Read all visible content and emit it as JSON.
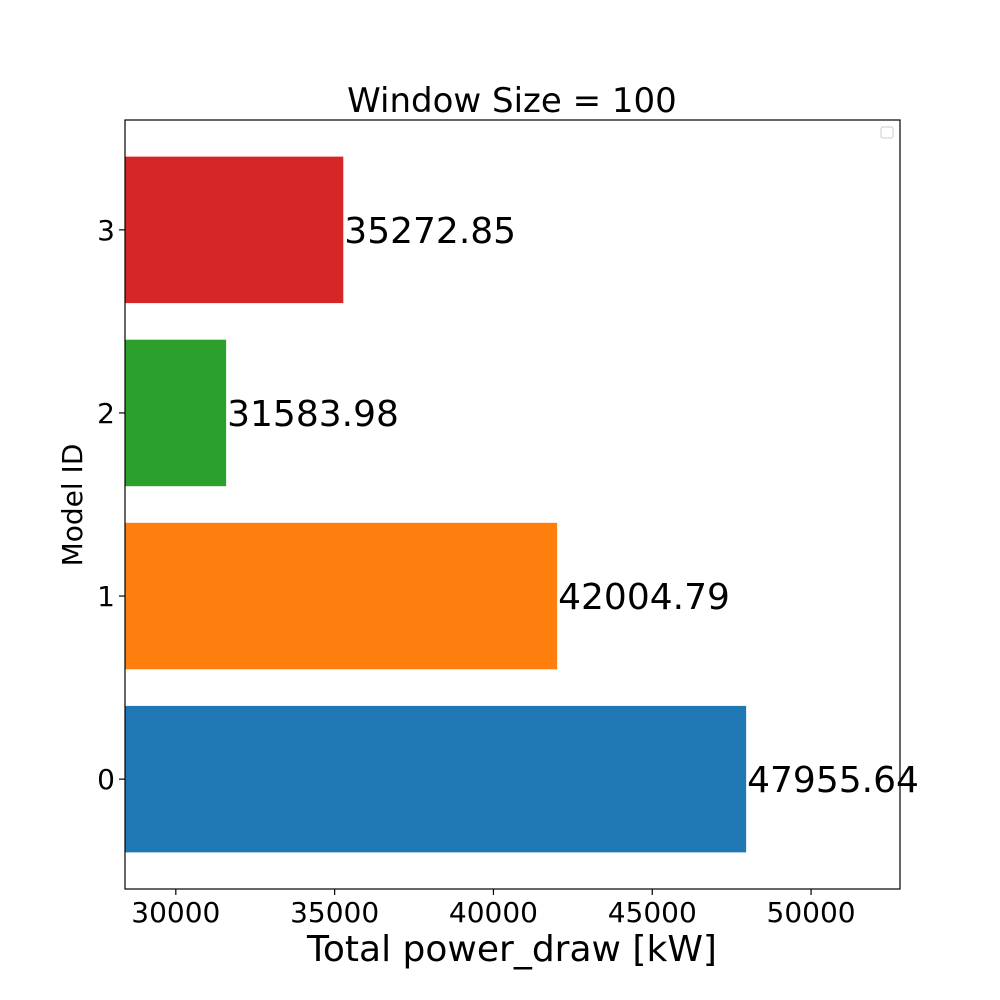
{
  "chart_data": {
    "type": "bar",
    "orientation": "horizontal",
    "title": "Window Size = 100",
    "xlabel": "Total power_draw [kW]",
    "ylabel": "Model ID",
    "categories": [
      "0",
      "1",
      "2",
      "3"
    ],
    "values": [
      47955.64,
      42004.79,
      31583.98,
      35272.85
    ],
    "value_labels": [
      "47955.64",
      "42004.79",
      "31583.98",
      "35272.85"
    ],
    "colors": [
      "#1f77b4",
      "#ff7f0e",
      "#2ca02c",
      "#d62728"
    ],
    "xlim": [
      28400,
      52800
    ],
    "xticks": [
      30000,
      35000,
      40000,
      45000,
      50000
    ],
    "xtick_labels": [
      "30000",
      "35000",
      "40000",
      "45000",
      "50000"
    ],
    "ylim": [
      -0.6,
      3.6
    ],
    "grid": false,
    "legend": {
      "placement": "top-right",
      "entries": []
    }
  }
}
